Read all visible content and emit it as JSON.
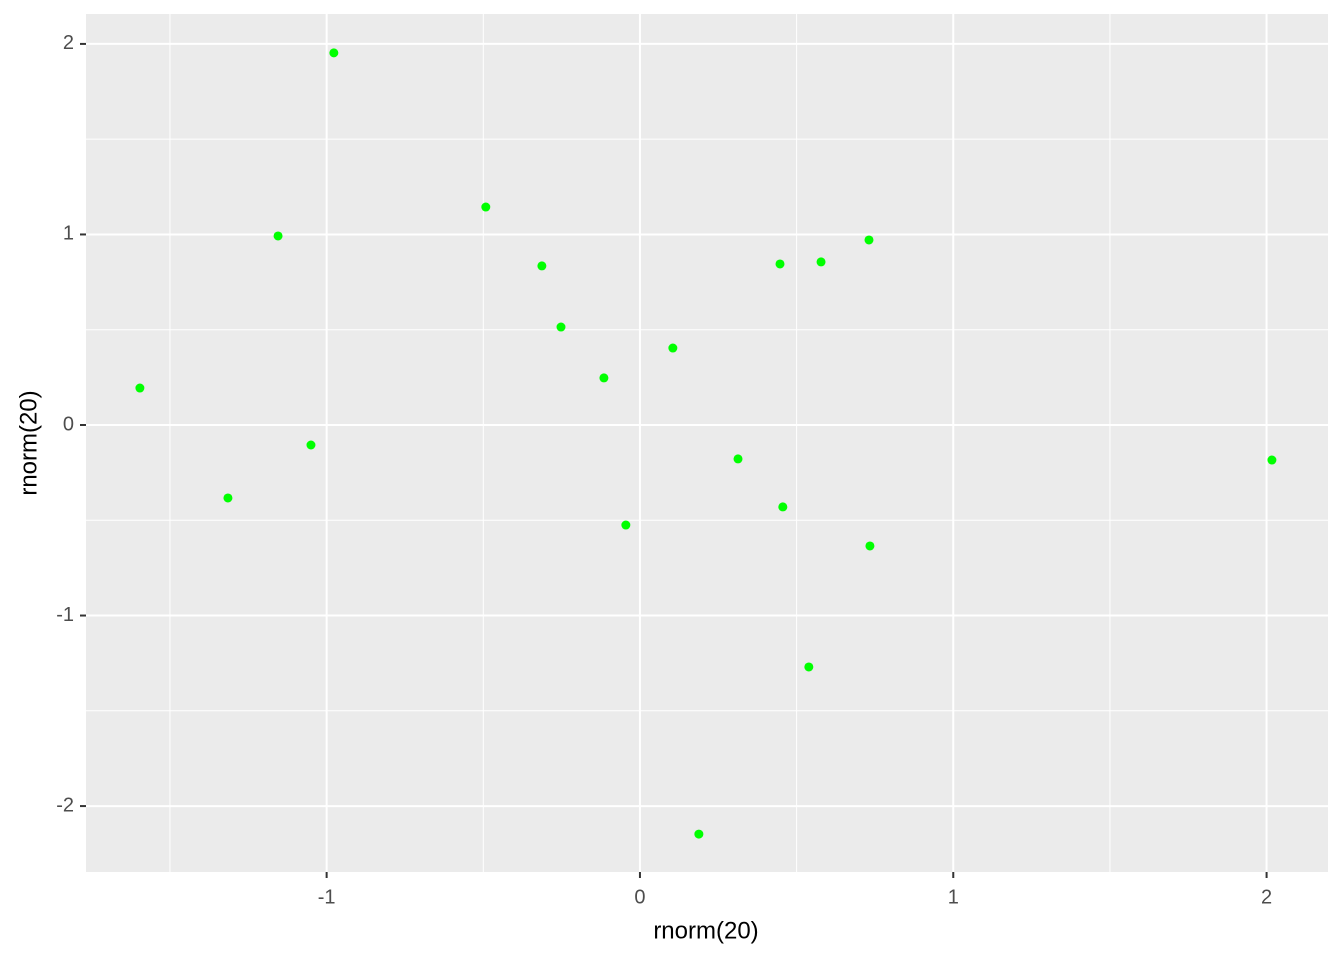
{
  "chart_data": {
    "type": "scatter",
    "x_label": "rnorm(20)",
    "y_label": "rnorm(20)",
    "x": [
      -1.596,
      -1.315,
      -1.155,
      -1.05,
      -0.977,
      -0.492,
      -0.313,
      -0.252,
      -0.115,
      -0.045,
      0.105,
      0.188,
      0.313,
      0.447,
      0.456,
      0.539,
      0.578,
      0.731,
      0.734,
      2.017
    ],
    "values": [
      0.194,
      -0.383,
      0.992,
      -0.105,
      1.953,
      1.144,
      0.835,
      0.514,
      0.247,
      -0.525,
      0.404,
      -2.147,
      -0.178,
      0.845,
      -0.43,
      -1.27,
      0.856,
      0.971,
      -0.635,
      -0.184
    ],
    "color": "#00ff00",
    "xlim": [
      -1.768,
      2.196
    ],
    "ylim": [
      -2.346,
      2.157
    ],
    "xticks": [
      -1,
      0,
      1,
      2
    ],
    "yticks": [
      -2,
      -1,
      0,
      1,
      2
    ],
    "grid": true,
    "panel_color": "#ebebeb"
  }
}
